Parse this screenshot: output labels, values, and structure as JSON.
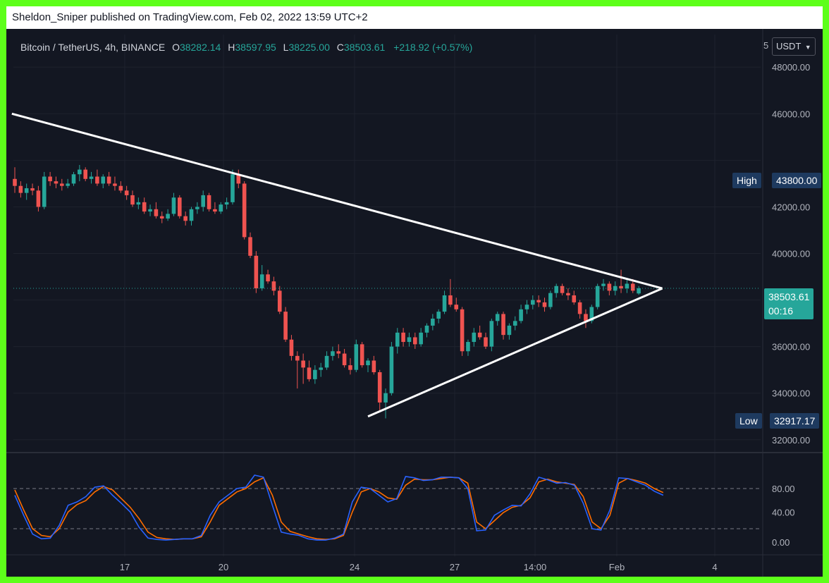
{
  "publish_bar": {
    "text": "Sheldon_Sniper published on TradingView.com, Feb 02, 2022 13:59 UTC+2"
  },
  "legend": {
    "symbol": "Bitcoin / TetherUS, 4h, BINANCE",
    "open_key": "O",
    "open": "38282.14",
    "high_key": "H",
    "high": "38597.95",
    "low_key": "L",
    "low": "38225.00",
    "close_key": "C",
    "close": "38503.61",
    "change": "+218.92 (+0.57%)"
  },
  "currency": {
    "prefix": "5",
    "label": "USDT",
    "icon": "chevron-down-icon"
  },
  "price_axis": {
    "ticks": [
      "48000.00",
      "46000.00",
      "42000.00",
      "40000.00",
      "36000.00",
      "34000.00",
      "32000.00"
    ]
  },
  "tags": {
    "high_label": "High",
    "high_value": "43800.00",
    "current_value": "38503.61",
    "countdown": "00:16",
    "low_label": "Low",
    "low_value": "32917.17"
  },
  "oscillator_axis": {
    "ticks": [
      "80.00",
      "40.00",
      "0.00"
    ]
  },
  "time_axis": {
    "ticks": [
      "17",
      "20",
      "24",
      "27",
      "14:00",
      "Feb",
      "4"
    ]
  },
  "colors": {
    "background": "#131722",
    "border": "#5dff1a",
    "up": "#26a69a",
    "down": "#ef5350",
    "trendline": "#ffffff",
    "k_line": "#2962ff",
    "d_line": "#ff6d00",
    "tag_blue": "#1e3a5f",
    "tag_teal": "#26a69a"
  },
  "chart_data": {
    "type": "candlestick",
    "price_range": [
      31600,
      49400
    ],
    "candles": [
      {
        "o": 43200,
        "h": 43700,
        "l": 42600,
        "c": 42900
      },
      {
        "o": 42900,
        "h": 43100,
        "l": 42400,
        "c": 42600
      },
      {
        "o": 42600,
        "h": 43000,
        "l": 42300,
        "c": 42800
      },
      {
        "o": 42800,
        "h": 43000,
        "l": 42500,
        "c": 42700
      },
      {
        "o": 42700,
        "h": 42900,
        "l": 41800,
        "c": 42000
      },
      {
        "o": 42000,
        "h": 43500,
        "l": 41900,
        "c": 43300
      },
      {
        "o": 43300,
        "h": 43500,
        "l": 42900,
        "c": 43100
      },
      {
        "o": 43100,
        "h": 43300,
        "l": 42800,
        "c": 43000
      },
      {
        "o": 43000,
        "h": 43200,
        "l": 42700,
        "c": 42900
      },
      {
        "o": 42900,
        "h": 43200,
        "l": 42800,
        "c": 43000
      },
      {
        "o": 43000,
        "h": 43500,
        "l": 42900,
        "c": 43400
      },
      {
        "o": 43400,
        "h": 43800,
        "l": 43100,
        "c": 43600
      },
      {
        "o": 43600,
        "h": 43700,
        "l": 43100,
        "c": 43200
      },
      {
        "o": 43200,
        "h": 43500,
        "l": 43000,
        "c": 43300
      },
      {
        "o": 43300,
        "h": 43600,
        "l": 42900,
        "c": 43000
      },
      {
        "o": 43000,
        "h": 43400,
        "l": 42800,
        "c": 43300
      },
      {
        "o": 43300,
        "h": 43500,
        "l": 42900,
        "c": 43000
      },
      {
        "o": 43000,
        "h": 43300,
        "l": 42700,
        "c": 42900
      },
      {
        "o": 42900,
        "h": 43100,
        "l": 42600,
        "c": 42700
      },
      {
        "o": 42700,
        "h": 42900,
        "l": 42300,
        "c": 42500
      },
      {
        "o": 42500,
        "h": 42700,
        "l": 42000,
        "c": 42100
      },
      {
        "o": 42100,
        "h": 42400,
        "l": 41900,
        "c": 42200
      },
      {
        "o": 42200,
        "h": 42400,
        "l": 41700,
        "c": 41800
      },
      {
        "o": 41800,
        "h": 42100,
        "l": 41600,
        "c": 41900
      },
      {
        "o": 41900,
        "h": 42200,
        "l": 41500,
        "c": 41600
      },
      {
        "o": 41600,
        "h": 41800,
        "l": 41300,
        "c": 41500
      },
      {
        "o": 41500,
        "h": 41900,
        "l": 41400,
        "c": 41700
      },
      {
        "o": 41700,
        "h": 42600,
        "l": 41600,
        "c": 42400
      },
      {
        "o": 42400,
        "h": 42500,
        "l": 41500,
        "c": 41600
      },
      {
        "o": 41600,
        "h": 41800,
        "l": 41200,
        "c": 41400
      },
      {
        "o": 41400,
        "h": 42000,
        "l": 41200,
        "c": 41900
      },
      {
        "o": 41900,
        "h": 42200,
        "l": 41700,
        "c": 42000
      },
      {
        "o": 42000,
        "h": 42700,
        "l": 41800,
        "c": 42500
      },
      {
        "o": 42500,
        "h": 42600,
        "l": 41800,
        "c": 41900
      },
      {
        "o": 41900,
        "h": 42200,
        "l": 41700,
        "c": 41800
      },
      {
        "o": 41800,
        "h": 42200,
        "l": 41700,
        "c": 42100
      },
      {
        "o": 42100,
        "h": 42400,
        "l": 41900,
        "c": 42200
      },
      {
        "o": 42200,
        "h": 43600,
        "l": 42100,
        "c": 43400
      },
      {
        "o": 43400,
        "h": 43600,
        "l": 42800,
        "c": 43000
      },
      {
        "o": 43000,
        "h": 43100,
        "l": 40600,
        "c": 40700
      },
      {
        "o": 40700,
        "h": 40900,
        "l": 39800,
        "c": 39900
      },
      {
        "o": 39900,
        "h": 40100,
        "l": 38300,
        "c": 38500
      },
      {
        "o": 38500,
        "h": 39500,
        "l": 38400,
        "c": 39100
      },
      {
        "o": 39100,
        "h": 39300,
        "l": 38700,
        "c": 38800
      },
      {
        "o": 38800,
        "h": 39000,
        "l": 38200,
        "c": 38400
      },
      {
        "o": 38400,
        "h": 38600,
        "l": 37400,
        "c": 37500
      },
      {
        "o": 37500,
        "h": 37700,
        "l": 36200,
        "c": 36300
      },
      {
        "o": 36300,
        "h": 36500,
        "l": 35400,
        "c": 35600
      },
      {
        "o": 35600,
        "h": 35800,
        "l": 34200,
        "c": 35400
      },
      {
        "o": 35400,
        "h": 35700,
        "l": 34400,
        "c": 35100
      },
      {
        "o": 35100,
        "h": 35400,
        "l": 34500,
        "c": 34600
      },
      {
        "o": 34600,
        "h": 35200,
        "l": 34400,
        "c": 35000
      },
      {
        "o": 35000,
        "h": 35300,
        "l": 34700,
        "c": 35100
      },
      {
        "o": 35100,
        "h": 35800,
        "l": 35000,
        "c": 35600
      },
      {
        "o": 35600,
        "h": 36000,
        "l": 35400,
        "c": 35800
      },
      {
        "o": 35800,
        "h": 36100,
        "l": 35500,
        "c": 35700
      },
      {
        "o": 35700,
        "h": 35900,
        "l": 35100,
        "c": 35200
      },
      {
        "o": 35200,
        "h": 35500,
        "l": 34800,
        "c": 35000
      },
      {
        "o": 35000,
        "h": 36300,
        "l": 34900,
        "c": 36100
      },
      {
        "o": 36100,
        "h": 36200,
        "l": 35100,
        "c": 35200
      },
      {
        "o": 35200,
        "h": 35500,
        "l": 34900,
        "c": 35400
      },
      {
        "o": 35400,
        "h": 35600,
        "l": 34800,
        "c": 34900
      },
      {
        "o": 34900,
        "h": 35000,
        "l": 33200,
        "c": 33600
      },
      {
        "o": 33600,
        "h": 34200,
        "l": 32917,
        "c": 34000
      },
      {
        "o": 34000,
        "h": 36200,
        "l": 33900,
        "c": 36000
      },
      {
        "o": 36000,
        "h": 36800,
        "l": 35700,
        "c": 36600
      },
      {
        "o": 36600,
        "h": 36800,
        "l": 36000,
        "c": 36200
      },
      {
        "o": 36200,
        "h": 36600,
        "l": 36000,
        "c": 36400
      },
      {
        "o": 36400,
        "h": 36600,
        "l": 35900,
        "c": 36100
      },
      {
        "o": 36100,
        "h": 36800,
        "l": 36000,
        "c": 36600
      },
      {
        "o": 36600,
        "h": 37000,
        "l": 36400,
        "c": 36900
      },
      {
        "o": 36900,
        "h": 37400,
        "l": 36700,
        "c": 37200
      },
      {
        "o": 37200,
        "h": 37600,
        "l": 37000,
        "c": 37500
      },
      {
        "o": 37500,
        "h": 38400,
        "l": 37400,
        "c": 38200
      },
      {
        "o": 38200,
        "h": 38900,
        "l": 37700,
        "c": 37800
      },
      {
        "o": 37800,
        "h": 38100,
        "l": 37500,
        "c": 37600
      },
      {
        "o": 37600,
        "h": 37700,
        "l": 35600,
        "c": 35800
      },
      {
        "o": 35800,
        "h": 36300,
        "l": 35600,
        "c": 36200
      },
      {
        "o": 36200,
        "h": 36800,
        "l": 36000,
        "c": 36600
      },
      {
        "o": 36600,
        "h": 36900,
        "l": 36300,
        "c": 36400
      },
      {
        "o": 36400,
        "h": 36600,
        "l": 35900,
        "c": 36000
      },
      {
        "o": 36000,
        "h": 37200,
        "l": 35800,
        "c": 37100
      },
      {
        "o": 37100,
        "h": 37500,
        "l": 36900,
        "c": 37400
      },
      {
        "o": 37400,
        "h": 37500,
        "l": 36300,
        "c": 36500
      },
      {
        "o": 36500,
        "h": 37000,
        "l": 36300,
        "c": 36900
      },
      {
        "o": 36900,
        "h": 37300,
        "l": 36700,
        "c": 37100
      },
      {
        "o": 37100,
        "h": 37800,
        "l": 37000,
        "c": 37600
      },
      {
        "o": 37600,
        "h": 38000,
        "l": 37400,
        "c": 37800
      },
      {
        "o": 37800,
        "h": 38200,
        "l": 37600,
        "c": 38000
      },
      {
        "o": 38000,
        "h": 38200,
        "l": 37700,
        "c": 37900
      },
      {
        "o": 37900,
        "h": 38100,
        "l": 37500,
        "c": 37700
      },
      {
        "o": 37700,
        "h": 38400,
        "l": 37600,
        "c": 38300
      },
      {
        "o": 38300,
        "h": 38700,
        "l": 38100,
        "c": 38600
      },
      {
        "o": 38600,
        "h": 38700,
        "l": 38200,
        "c": 38300
      },
      {
        "o": 38300,
        "h": 38500,
        "l": 38000,
        "c": 38200
      },
      {
        "o": 38200,
        "h": 38400,
        "l": 37800,
        "c": 37900
      },
      {
        "o": 37900,
        "h": 38000,
        "l": 37200,
        "c": 37400
      },
      {
        "o": 37400,
        "h": 37600,
        "l": 36800,
        "c": 37100
      },
      {
        "o": 37100,
        "h": 37800,
        "l": 37000,
        "c": 37700
      },
      {
        "o": 37700,
        "h": 38700,
        "l": 37600,
        "c": 38600
      },
      {
        "o": 38600,
        "h": 38900,
        "l": 38400,
        "c": 38700
      },
      {
        "o": 38700,
        "h": 38800,
        "l": 38200,
        "c": 38400
      },
      {
        "o": 38400,
        "h": 38800,
        "l": 38200,
        "c": 38600
      },
      {
        "o": 38600,
        "h": 39300,
        "l": 38300,
        "c": 38500
      },
      {
        "o": 38500,
        "h": 38900,
        "l": 38300,
        "c": 38700
      },
      {
        "o": 38700,
        "h": 38900,
        "l": 38300,
        "c": 38400
      },
      {
        "o": 38282,
        "h": 38598,
        "l": 38225,
        "c": 38503
      }
    ],
    "trendlines": [
      {
        "start_index": -0.5,
        "start_price": 46000,
        "end_index": 110,
        "end_price": 38500
      },
      {
        "start_index": 60,
        "start_price": 33000,
        "end_index": 110,
        "end_price": 38500
      }
    ],
    "stochastic": {
      "levels": [
        80,
        20
      ],
      "k": [
        70,
        40,
        12,
        5,
        6,
        25,
        55,
        60,
        68,
        82,
        84,
        70,
        58,
        45,
        22,
        6,
        4,
        3,
        4,
        5,
        5,
        10,
        40,
        60,
        70,
        80,
        82,
        100,
        97,
        55,
        15,
        12,
        10,
        5,
        3,
        3,
        6,
        12,
        60,
        82,
        80,
        70,
        60,
        65,
        98,
        96,
        92,
        93,
        97,
        97,
        96,
        80,
        17,
        18,
        40,
        48,
        55,
        54,
        72,
        97,
        93,
        88,
        89,
        85,
        58,
        20,
        18,
        48,
        96,
        95,
        90,
        85,
        76,
        70
      ],
      "d": [
        78,
        48,
        20,
        10,
        8,
        20,
        45,
        56,
        62,
        75,
        83,
        78,
        65,
        52,
        35,
        15,
        7,
        5,
        4,
        5,
        5,
        8,
        30,
        55,
        65,
        75,
        80,
        90,
        96,
        70,
        30,
        16,
        12,
        8,
        5,
        4,
        5,
        10,
        45,
        75,
        80,
        75,
        66,
        64,
        85,
        94,
        93,
        93,
        95,
        97,
        96,
        88,
        30,
        20,
        32,
        44,
        52,
        55,
        66,
        90,
        94,
        90,
        88,
        86,
        68,
        30,
        20,
        40,
        88,
        95,
        92,
        88,
        80,
        74
      ]
    }
  }
}
